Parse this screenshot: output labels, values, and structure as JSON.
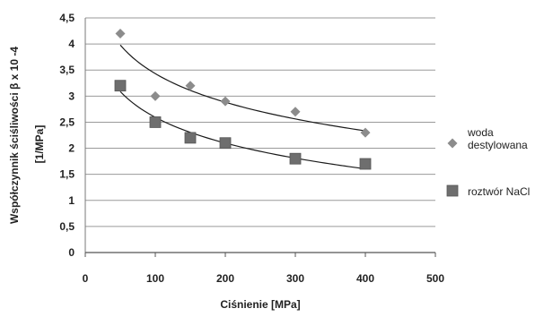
{
  "chart_data": {
    "type": "scatter",
    "title": "",
    "xlabel": "Ciśnienie [MPa]",
    "ylabel_lines": [
      "Współczynnik ściśliwości  β x 10 -4",
      "[1/MPa]"
    ],
    "xlim": [
      0,
      500
    ],
    "ylim": [
      0,
      4.5
    ],
    "x_ticks": [
      0,
      100,
      200,
      300,
      400,
      500
    ],
    "x_tick_labels": [
      "0",
      "100",
      "200",
      "300",
      "400",
      "500"
    ],
    "y_ticks": [
      0,
      0.5,
      1,
      1.5,
      2,
      2.5,
      3,
      3.5,
      4,
      4.5
    ],
    "y_tick_labels": [
      "0",
      "0,5",
      "1",
      "1,5",
      "2",
      "2,5",
      "3",
      "3,5",
      "4",
      "4,5"
    ],
    "grid": "horizontal",
    "legend_position": "right",
    "series": [
      {
        "name_lines": [
          "woda",
          "destylowana"
        ],
        "marker": "diamond",
        "color": "#8c8c8c",
        "trendline": "logarithmic",
        "x": [
          50,
          100,
          150,
          200,
          300,
          400
        ],
        "y": [
          4.2,
          3.0,
          3.2,
          2.9,
          2.7,
          2.3
        ]
      },
      {
        "name_lines": [
          "roztwór NaCl"
        ],
        "marker": "square",
        "color": "#6e6e6e",
        "trendline": "logarithmic",
        "x": [
          50,
          100,
          150,
          200,
          300,
          400
        ],
        "y": [
          3.2,
          2.5,
          2.2,
          2.1,
          1.8,
          1.7
        ]
      }
    ]
  }
}
